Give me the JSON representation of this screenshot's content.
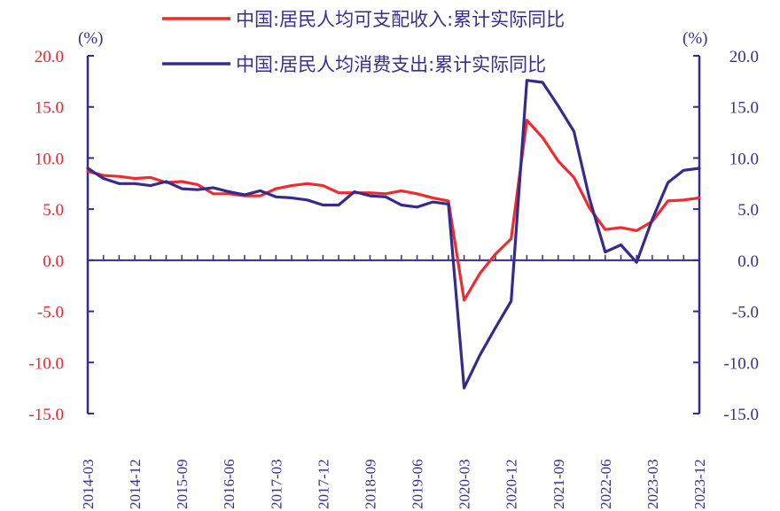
{
  "chart_data": {
    "type": "line",
    "title": "",
    "xlabel": "",
    "ylabel_left": "(%)",
    "ylabel_right": "(%)",
    "ylim": [
      -15,
      20
    ],
    "yticks": [
      "20.0",
      "15.0",
      "10.0",
      "5.0",
      "0.0",
      "-5.0",
      "-10.0",
      "-15.0"
    ],
    "x_tick_labels": [
      "2014-03",
      "2014-12",
      "2015-09",
      "2016-06",
      "2017-03",
      "2017-12",
      "2018-09",
      "2019-06",
      "2020-03",
      "2020-12",
      "2021-09",
      "2022-06",
      "2023-03",
      "2023-12"
    ],
    "legend_position": "top",
    "grid": false,
    "x": [
      "2014-03",
      "2014-06",
      "2014-09",
      "2014-12",
      "2015-03",
      "2015-06",
      "2015-09",
      "2015-12",
      "2016-03",
      "2016-06",
      "2016-09",
      "2016-12",
      "2017-03",
      "2017-06",
      "2017-09",
      "2017-12",
      "2018-03",
      "2018-06",
      "2018-09",
      "2018-12",
      "2019-03",
      "2019-06",
      "2019-09",
      "2019-12",
      "2020-03",
      "2020-06",
      "2020-09",
      "2020-12",
      "2021-03",
      "2021-06",
      "2021-09",
      "2021-12",
      "2022-03",
      "2022-06",
      "2022-09",
      "2022-12",
      "2023-03",
      "2023-06",
      "2023-09",
      "2023-12"
    ],
    "series": [
      {
        "name": "中国:居民人均可支配收入:累计实际同比",
        "color": "#ee2b2f",
        "values": [
          8.7,
          8.3,
          8.2,
          8.0,
          8.1,
          7.6,
          7.7,
          7.4,
          6.5,
          6.5,
          6.3,
          6.3,
          7.0,
          7.3,
          7.5,
          7.3,
          6.6,
          6.6,
          6.6,
          6.5,
          6.8,
          6.5,
          6.1,
          5.8,
          -3.9,
          -1.3,
          0.6,
          2.1,
          13.7,
          12.0,
          9.7,
          8.1,
          5.1,
          3.0,
          3.2,
          2.9,
          3.8,
          5.8,
          5.9,
          6.1
        ]
      },
      {
        "name": "中国:居民人均消费支出:累计实际同比",
        "color": "#362b8c",
        "values": [
          9.0,
          8.0,
          7.5,
          7.5,
          7.3,
          7.7,
          7.0,
          6.9,
          7.1,
          6.7,
          6.4,
          6.8,
          6.2,
          6.1,
          5.9,
          5.4,
          5.4,
          6.7,
          6.3,
          6.2,
          5.4,
          5.2,
          5.7,
          5.5,
          -12.5,
          -9.3,
          -6.6,
          -4.0,
          17.6,
          17.4,
          15.1,
          12.6,
          6.0,
          0.8,
          1.5,
          -0.2,
          4.0,
          7.6,
          8.8,
          9.0
        ]
      }
    ]
  }
}
